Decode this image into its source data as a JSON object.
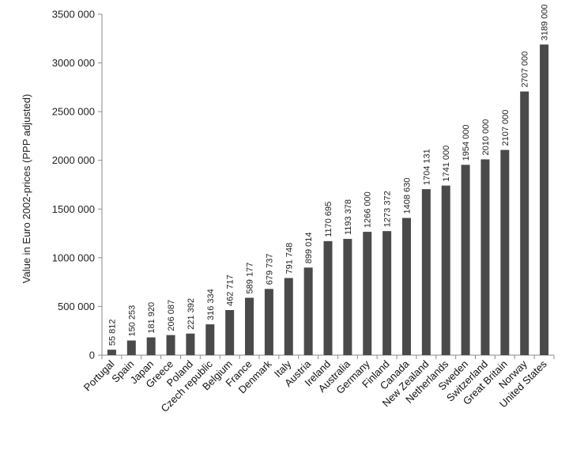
{
  "chart_data": {
    "type": "bar",
    "ylabel": "Value in Euro 2002-prices (PPP adjusted)",
    "ylim": [
      0,
      3500000
    ],
    "yticks": [
      0,
      500000,
      1000000,
      1500000,
      2000000,
      2500000,
      3000000,
      3500000
    ],
    "ytick_labels": [
      "0",
      "500 000",
      "1000 000",
      "1500 000",
      "2000 000",
      "2500 000",
      "3000 000",
      "3500 000"
    ],
    "bar_color": "#4a4a4a",
    "categories": [
      "Portugal",
      "Spain",
      "Japan",
      "Greece",
      "Poland",
      "Czech republic",
      "Belgium",
      "France",
      "Denmark",
      "Italy",
      "Austria",
      "Ireland",
      "Australia",
      "Germany",
      "Finland",
      "Canada",
      "New Zealand",
      "Netherlands",
      "Sweden",
      "Switzerland",
      "Great Britain",
      "Norway",
      "United States"
    ],
    "values": [
      55812,
      150253,
      181920,
      206087,
      221392,
      316334,
      462717,
      589177,
      679737,
      791748,
      899014,
      1170695,
      1193378,
      1266000,
      1273372,
      1408630,
      1704131,
      1741000,
      1954000,
      2010000,
      2107000,
      2707000,
      3189000
    ],
    "value_labels": [
      "55 812",
      "150 253",
      "181 920",
      "206 087",
      "221 392",
      "316 334",
      "462 717",
      "589 177",
      "679 737",
      "791 748",
      "899 014",
      "1170 695",
      "1193 378",
      "1266 000",
      "1273 372",
      "1408 630",
      "1704 131",
      "1741 000",
      "1954 000",
      "2010 000",
      "2107 000",
      "2707 000",
      "3189 000"
    ]
  }
}
